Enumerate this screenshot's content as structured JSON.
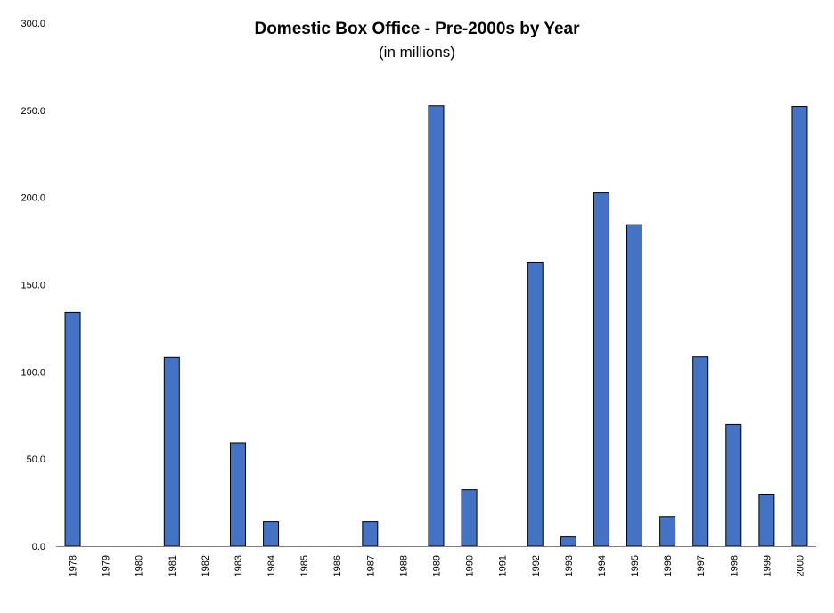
{
  "chart_data": {
    "type": "bar",
    "title": "Domestic Box Office - Pre-2000s by Year",
    "subtitle": "(in millions)",
    "xlabel": "",
    "ylabel": "",
    "ylim": [
      0,
      300
    ],
    "y_ticks": [
      "0.0",
      "50.0",
      "100.0",
      "150.0",
      "200.0",
      "250.0",
      "300.0"
    ],
    "grid": false,
    "categories": [
      "1978",
      "1979",
      "1980",
      "1981",
      "1982",
      "1983",
      "1984",
      "1985",
      "1986",
      "1987",
      "1988",
      "1989",
      "1990",
      "1991",
      "1992",
      "1993",
      "1994",
      "1995",
      "1996",
      "1997",
      "1998",
      "1999",
      "2000"
    ],
    "values": [
      134.2,
      0,
      0,
      108.2,
      0,
      59.3,
      14.0,
      0,
      0,
      14.0,
      0,
      252.6,
      32.4,
      0,
      162.8,
      5.3,
      202.6,
      184.4,
      17.0,
      108.5,
      69.8,
      29.4,
      252.2
    ],
    "bar_color": "#4472C4"
  }
}
